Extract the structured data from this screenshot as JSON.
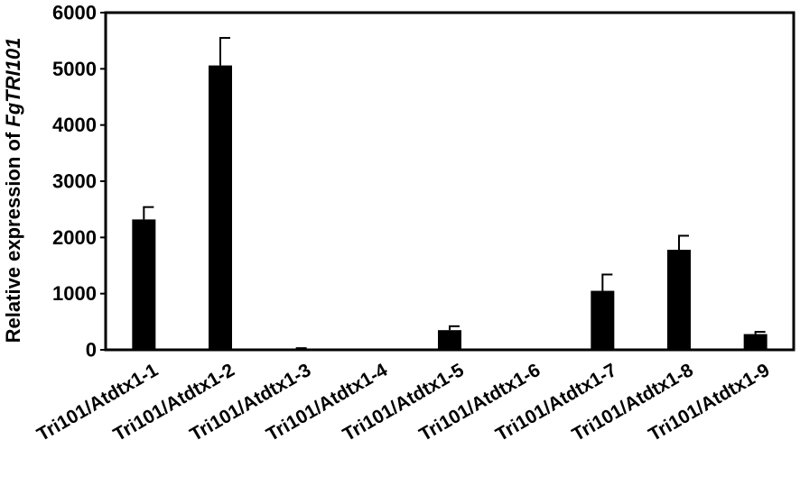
{
  "chart_data": {
    "type": "bar",
    "title": "",
    "ylabel_prefix": "Relative expression of ",
    "ylabel_italic": "FgTRI101",
    "categories": [
      "Tri101/Atdtx1-1",
      "Tri101/Atdtx1-2",
      "Tri101/Atdtx1-3",
      "Tri101/Atdtx1-4",
      "Tri101/Atdtx1-5",
      "Tri101/Atdtx1-6",
      "Tri101/Atdtx1-7",
      "Tri101/Atdtx1-8",
      "Tri101/Atdtx1-9"
    ],
    "values": [
      2320,
      5060,
      20,
      0,
      350,
      0,
      1050,
      1780,
      280
    ],
    "errors": [
      220,
      490,
      10,
      0,
      70,
      0,
      290,
      250,
      40
    ],
    "ylim": [
      0,
      6000
    ],
    "yticks": [
      0,
      1000,
      2000,
      3000,
      4000,
      5000,
      6000
    ],
    "bar_color": "#000000",
    "grid": false,
    "legend": "none"
  }
}
